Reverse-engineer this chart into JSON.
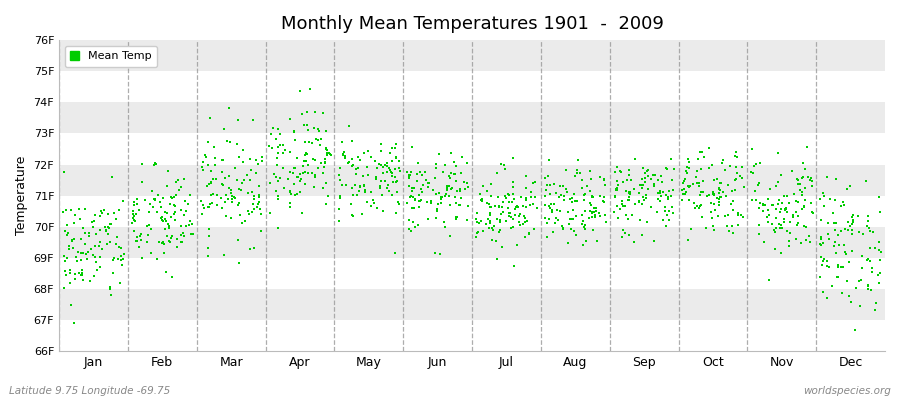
{
  "title": "Monthly Mean Temperatures 1901  -  2009",
  "ylabel": "Temperature",
  "xlabel_months": [
    "Jan",
    "Feb",
    "Mar",
    "Apr",
    "May",
    "Jun",
    "Jul",
    "Aug",
    "Sep",
    "Oct",
    "Nov",
    "Dec"
  ],
  "ylim": [
    66,
    76
  ],
  "ytick_labels": [
    "66F",
    "67F",
    "68F",
    "69F",
    "70F",
    "71F",
    "72F",
    "73F",
    "74F",
    "75F",
    "76F"
  ],
  "dot_color": "#00cc00",
  "dot_size": 3,
  "legend_label": "Mean Temp",
  "bottom_left": "Latitude 9.75 Longitude -69.75",
  "bottom_right": "worldspecies.org",
  "background_color": "#ffffff",
  "plot_bg_color": "#ffffff",
  "band_color_light": "#ebebeb",
  "monthly_means": [
    69.3,
    70.2,
    71.3,
    72.2,
    71.6,
    71.0,
    70.6,
    70.6,
    71.0,
    71.2,
    70.7,
    69.4
  ],
  "monthly_stds": [
    0.9,
    0.85,
    0.9,
    0.85,
    0.7,
    0.65,
    0.65,
    0.6,
    0.65,
    0.75,
    0.85,
    1.05
  ],
  "n_years": 109,
  "random_seed": 42
}
